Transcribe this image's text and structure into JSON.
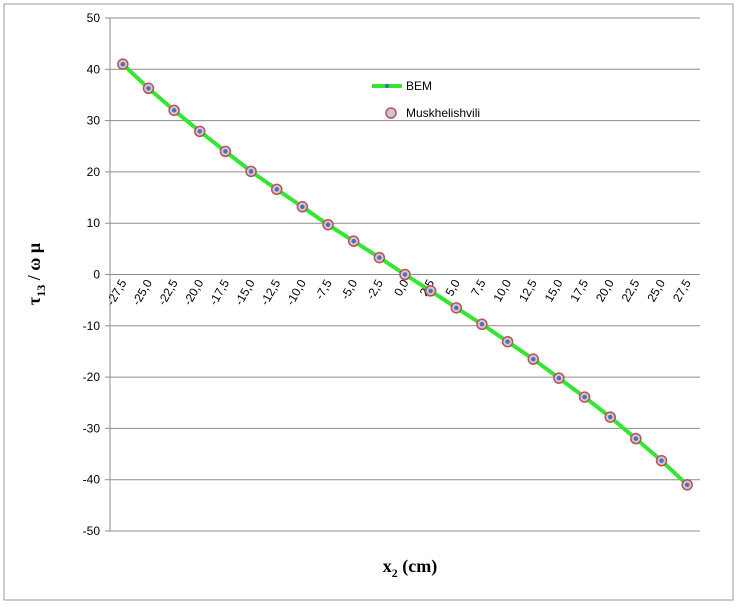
{
  "chart_data": {
    "type": "line",
    "y_label": [
      "τ",
      "13",
      " / ω μ"
    ],
    "x_label": [
      "x",
      "2",
      " (cm)"
    ],
    "categories": [
      "-27,5",
      "-25,0",
      "-22,5",
      "-20,0",
      "-17,5",
      "-15,0",
      "-12,5",
      "-10,0",
      "-7,5",
      "-5,0",
      "-2,5",
      "0,0",
      "2,5",
      "5,0",
      "7,5",
      "10,0",
      "12,5",
      "15,0",
      "17,5",
      "20,0",
      "22,5",
      "25,0",
      "27,5"
    ],
    "series": [
      {
        "name": "BEM",
        "color": "#33e633",
        "marker_color": "#4a6fb5",
        "values": [
          41,
          36.3,
          32,
          27.9,
          24,
          20.1,
          16.6,
          13.2,
          9.7,
          6.5,
          3.3,
          0,
          -3.2,
          -6.5,
          -9.7,
          -13.1,
          -16.5,
          -20.2,
          -23.9,
          -27.8,
          -32,
          -36.3,
          -41
        ]
      },
      {
        "name": "Muskhelishvili",
        "color": "#c0504d",
        "values": [
          41,
          36.3,
          32,
          27.9,
          24,
          20.1,
          16.6,
          13.2,
          9.7,
          6.5,
          3.3,
          0,
          -3.2,
          -6.5,
          -9.7,
          -13.1,
          -16.5,
          -20.2,
          -23.9,
          -27.8,
          -32,
          -36.3,
          -41
        ]
      }
    ],
    "ylim": [
      -50,
      50
    ],
    "yticks": [
      -50,
      -40,
      -30,
      -20,
      -10,
      0,
      10,
      20,
      30,
      40,
      50
    ],
    "grid": true,
    "legend": "top"
  }
}
